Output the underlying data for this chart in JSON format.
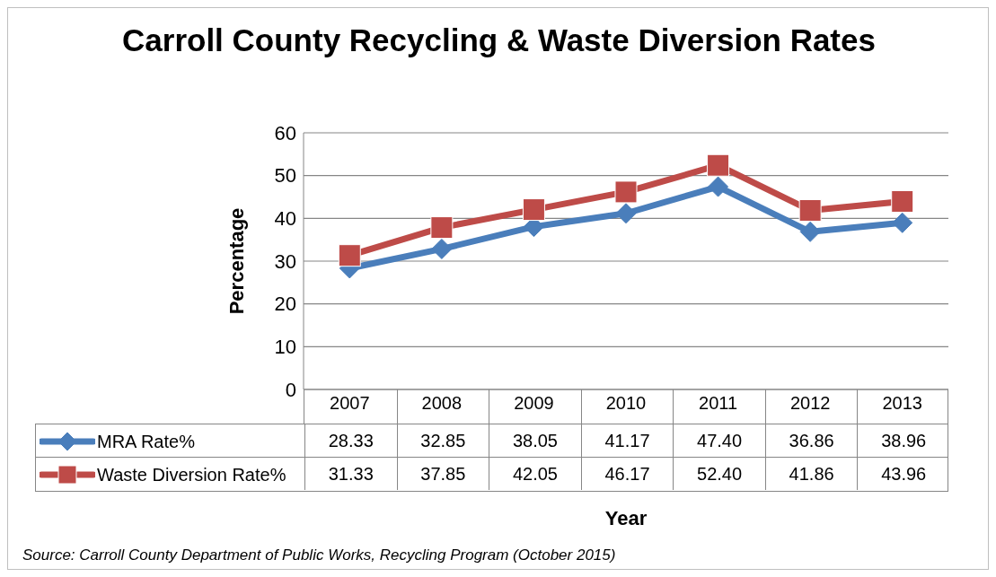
{
  "chart_data": {
    "type": "line",
    "title": "Carroll County Recycling & Waste Diversion Rates",
    "xlabel": "Year",
    "ylabel": "Percentage",
    "categories": [
      "2007",
      "2008",
      "2009",
      "2010",
      "2011",
      "2012",
      "2013"
    ],
    "series": [
      {
        "name": "MRA Rate%",
        "color": "#4a7ebb",
        "marker": "diamond",
        "values": [
          28.33,
          32.85,
          38.05,
          41.17,
          47.4,
          36.86,
          38.96
        ],
        "value_labels": [
          "28.33",
          "32.85",
          "38.05",
          "41.17",
          "47.40",
          "36.86",
          "38.96"
        ]
      },
      {
        "name": "Waste Diversion Rate%",
        "color": "#be4b48",
        "marker": "square",
        "values": [
          31.33,
          37.85,
          42.05,
          46.17,
          52.4,
          41.86,
          43.96
        ],
        "value_labels": [
          "31.33",
          "37.85",
          "42.05",
          "46.17",
          "52.40",
          "41.86",
          "43.96"
        ]
      }
    ],
    "ylim": [
      0,
      60
    ],
    "yticks": [
      0,
      10,
      20,
      30,
      40,
      50,
      60
    ],
    "grid": "y",
    "legend": "bottom left",
    "line_style": "solid",
    "annotations": [
      "Source:  Carroll County Department of Public Works, Recycling Program (October 2015)"
    ]
  }
}
